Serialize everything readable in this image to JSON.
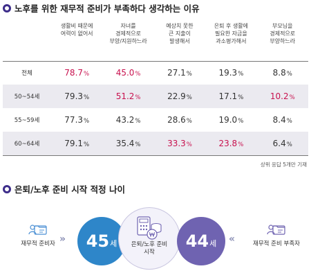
{
  "section1": {
    "title": "노후를 위한 재무적 준비가 부족하다 생각하는 이유",
    "columns": [
      "생활비 때문에\n여력이 없어서",
      "자녀를\n경제적으로\n부양/지원하느라",
      "예상치 못한\n큰 지출이\n발생해서",
      "은퇴 후 생활에\n필요한 자금을\n과소평가해서",
      "부모님을\n경제적으로\n부양하느라"
    ],
    "rows": [
      {
        "label": "전체",
        "values": [
          "78.7",
          "45.0",
          "27.1",
          "19.3",
          "8.8"
        ],
        "highlight": [
          true,
          true,
          false,
          false,
          false
        ]
      },
      {
        "label": "50~54세",
        "values": [
          "79.3",
          "51.2",
          "22.9",
          "17.1",
          "10.2"
        ],
        "highlight": [
          false,
          true,
          false,
          false,
          true
        ]
      },
      {
        "label": "55~59세",
        "values": [
          "77.3",
          "43.2",
          "28.6",
          "19.0",
          "8.4"
        ],
        "highlight": [
          false,
          false,
          false,
          false,
          false
        ]
      },
      {
        "label": "60~64세",
        "values": [
          "79.1",
          "35.4",
          "33.3",
          "23.8",
          "6.4"
        ],
        "highlight": [
          false,
          false,
          true,
          true,
          false
        ]
      }
    ],
    "unit": "%",
    "note": "상위 응답 5개만 기재",
    "highlight_color": "#c8114e"
  },
  "section2": {
    "title": "은퇴/노후 준비 시작 적정 나이",
    "left_label": "재무적 준비자",
    "right_label": "재무적 준비 부족자",
    "left_age": "45",
    "right_age": "44",
    "age_unit": "세",
    "center_label": "은퇴/노후 준비\n시작",
    "left_icon": "person-folder-icon",
    "right_icon": "person-folder-icon",
    "center_icon": "calculator-coins-icon",
    "left_color": "#2e86c9",
    "right_color": "#6f63b1",
    "chevron": "»"
  }
}
